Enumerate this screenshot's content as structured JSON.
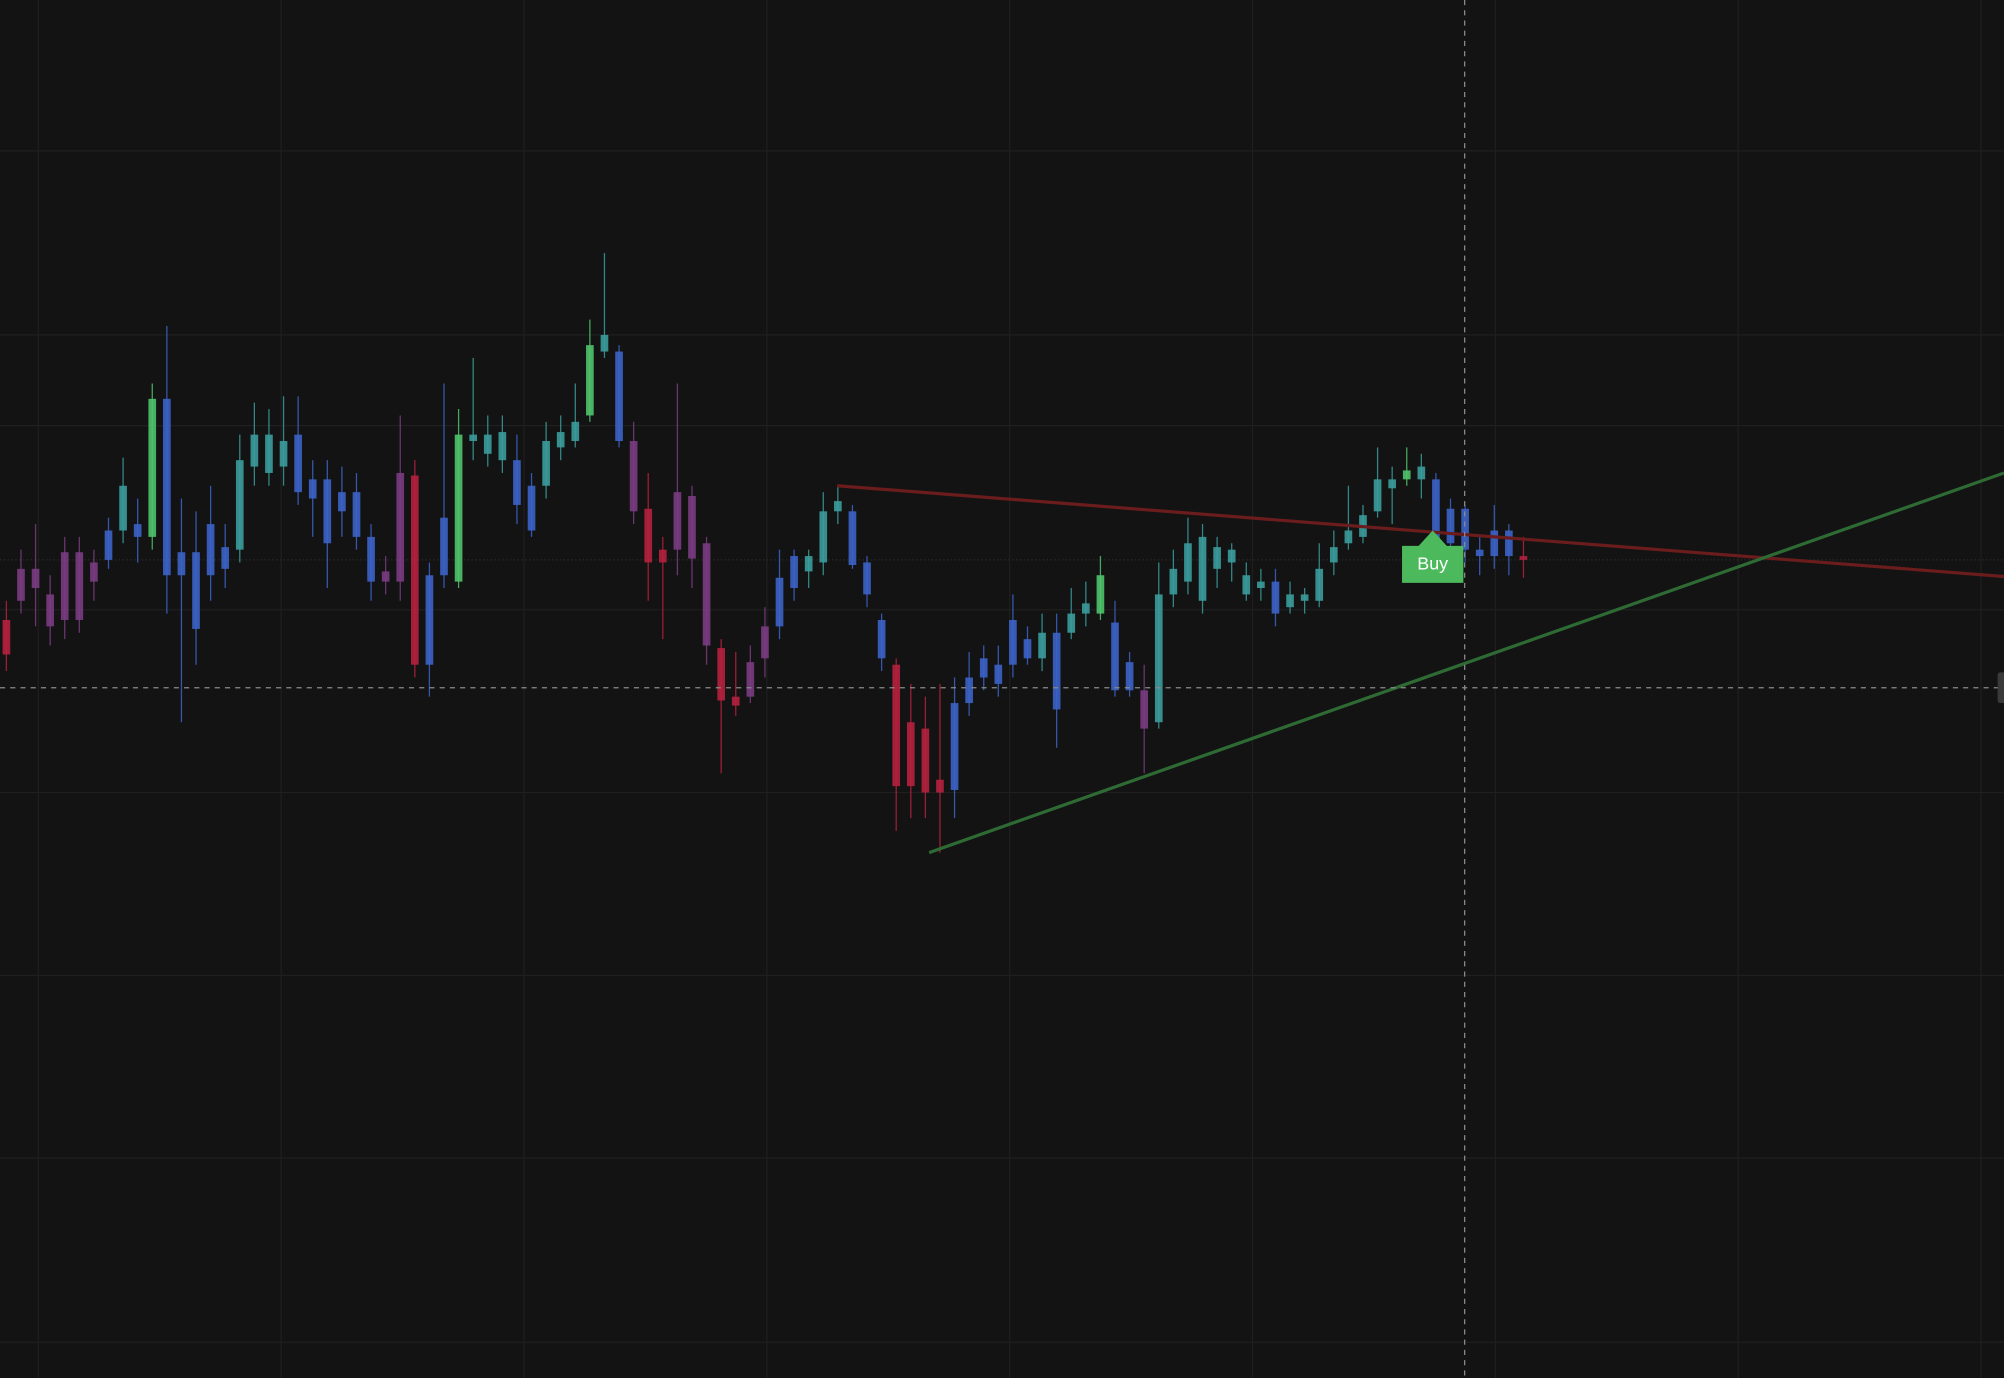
{
  "chart_data": {
    "type": "candlestick",
    "annotation": "Buy",
    "ylim": [
      0,
      1078
    ],
    "open": [
      593,
      633,
      633,
      613,
      646,
      646,
      638,
      663,
      663,
      668,
      658,
      766,
      646,
      646,
      668,
      650,
      648,
      713,
      708,
      713,
      738,
      703,
      703,
      693,
      693,
      658,
      631,
      708,
      706,
      628,
      673,
      623,
      733,
      723,
      718,
      718,
      698,
      698,
      728,
      733,
      753,
      803,
      803,
      733,
      680,
      648,
      693,
      690,
      653,
      571,
      533,
      533,
      563,
      588,
      618,
      631,
      638,
      678,
      678,
      638,
      593,
      558,
      513,
      508,
      468,
      460,
      528,
      548,
      558,
      558,
      578,
      563,
      583,
      583,
      598,
      598,
      591,
      560,
      538,
      513,
      613,
      623,
      658,
      633,
      638,
      628,
      623,
      623,
      603,
      608,
      608,
      638,
      653,
      658,
      678,
      696,
      703,
      713,
      703,
      653,
      680,
      648,
      643,
      663,
      643
    ],
    "high": [
      608,
      648,
      668,
      628,
      658,
      658,
      648,
      673,
      720,
      688,
      778,
      823,
      688,
      678,
      698,
      668,
      738,
      763,
      758,
      768,
      768,
      718,
      718,
      713,
      708,
      668,
      643,
      753,
      718,
      638,
      778,
      758,
      798,
      753,
      753,
      738,
      708,
      748,
      753,
      778,
      828,
      880,
      808,
      748,
      708,
      658,
      778,
      698,
      658,
      578,
      568,
      573,
      603,
      648,
      648,
      648,
      693,
      698,
      683,
      643,
      598,
      563,
      543,
      533,
      543,
      548,
      568,
      573,
      573,
      613,
      588,
      598,
      598,
      618,
      623,
      643,
      608,
      568,
      558,
      638,
      648,
      673,
      668,
      658,
      653,
      638,
      633,
      633,
      623,
      618,
      653,
      663,
      698,
      683,
      728,
      713,
      728,
      723,
      708,
      688,
      683,
      658,
      683,
      668,
      658
    ],
    "low": [
      553,
      598,
      588,
      573,
      578,
      583,
      608,
      633,
      653,
      638,
      648,
      598,
      513,
      558,
      608,
      618,
      638,
      698,
      698,
      698,
      683,
      658,
      618,
      658,
      648,
      608,
      613,
      608,
      548,
      533,
      618,
      618,
      718,
      713,
      708,
      668,
      658,
      688,
      718,
      728,
      748,
      798,
      728,
      668,
      608,
      578,
      628,
      618,
      558,
      473,
      518,
      528,
      548,
      578,
      608,
      618,
      628,
      668,
      633,
      603,
      553,
      428,
      438,
      438,
      411,
      438,
      518,
      538,
      533,
      548,
      558,
      553,
      493,
      578,
      588,
      593,
      533,
      533,
      473,
      508,
      603,
      613,
      598,
      618,
      623,
      608,
      608,
      588,
      598,
      598,
      603,
      628,
      648,
      653,
      673,
      668,
      698,
      688,
      648,
      638,
      638,
      628,
      633,
      628,
      626
    ],
    "close": [
      566,
      608,
      618,
      588,
      593,
      593,
      623,
      640,
      698,
      658,
      766,
      628,
      628,
      586,
      628,
      633,
      718,
      738,
      738,
      733,
      693,
      688,
      653,
      678,
      658,
      623,
      623,
      623,
      558,
      558,
      628,
      738,
      738,
      738,
      740,
      683,
      663,
      733,
      740,
      748,
      808,
      816,
      733,
      678,
      638,
      638,
      648,
      641,
      573,
      530,
      526,
      560,
      588,
      626,
      643,
      643,
      678,
      686,
      636,
      613,
      563,
      463,
      463,
      458,
      458,
      528,
      548,
      563,
      543,
      593,
      563,
      583,
      523,
      598,
      606,
      628,
      538,
      538,
      508,
      613,
      633,
      653,
      608,
      650,
      648,
      613,
      618,
      598,
      613,
      613,
      633,
      650,
      663,
      675,
      703,
      703,
      710,
      703,
      653,
      680,
      648,
      643,
      663,
      643,
      640
    ],
    "colors": [
      "#b5213e",
      "#7a3c82",
      "#7a3c82",
      "#7a3c82",
      "#7a3c82",
      "#7a3c82",
      "#7a3c82",
      "#3c63c8",
      "#3b9c9c",
      "#3c63c8",
      "#4fc46b",
      "#3c63c8",
      "#3c63c8",
      "#3c63c8",
      "#3c63c8",
      "#3c63c8",
      "#3b9c9c",
      "#3b9c9c",
      "#3b9c9c",
      "#3b9c9c",
      "#3c63c8",
      "#3c63c8",
      "#3c63c8",
      "#3c63c8",
      "#3c63c8",
      "#3c63c8",
      "#7a3c82",
      "#7a3c82",
      "#b5213e",
      "#3c63c8",
      "#3c63c8",
      "#4fc46b",
      "#3b9c9c",
      "#3b9c9c",
      "#3b9c9c",
      "#3c63c8",
      "#3c63c8",
      "#3b9c9c",
      "#3b9c9c",
      "#3b9c9c",
      "#4fc46b",
      "#3b9c9c",
      "#3c63c8",
      "#7a3c82",
      "#b5213e",
      "#b5213e",
      "#7a3c82",
      "#7a3c82",
      "#7a3c82",
      "#b5213e",
      "#b5213e",
      "#7a3c82",
      "#7a3c82",
      "#3c63c8",
      "#3c63c8",
      "#3b9c9c",
      "#3b9c9c",
      "#3b9c9c",
      "#3c63c8",
      "#3c63c8",
      "#3c63c8",
      "#b5213e",
      "#b5213e",
      "#b5213e",
      "#b5213e",
      "#3c63c8",
      "#3c63c8",
      "#3c63c8",
      "#3c63c8",
      "#3c63c8",
      "#3c63c8",
      "#3b9c9c",
      "#3c63c8",
      "#3b9c9c",
      "#3b9c9c",
      "#4fc46b",
      "#3c63c8",
      "#3c63c8",
      "#7a3c82",
      "#3b9c9c",
      "#3b9c9c",
      "#3b9c9c",
      "#3b9c9c",
      "#3b9c9c",
      "#3b9c9c",
      "#3b9c9c",
      "#3b9c9c",
      "#3c63c8",
      "#3b9c9c",
      "#3b9c9c",
      "#3b9c9c",
      "#3b9c9c",
      "#3b9c9c",
      "#3b9c9c",
      "#3b9c9c",
      "#3b9c9c",
      "#4fc46b",
      "#3b9c9c",
      "#3c63c8",
      "#3c63c8",
      "#3c63c8",
      "#3c63c8",
      "#3c63c8",
      "#3c63c8",
      "#b5213e"
    ]
  }
}
